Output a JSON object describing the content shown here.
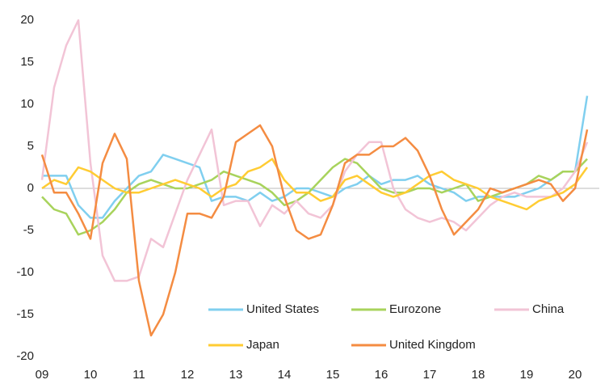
{
  "chart_data": {
    "type": "line",
    "x": [
      2009,
      2009.25,
      2009.5,
      2009.75,
      2010,
      2010.25,
      2010.5,
      2010.75,
      2011,
      2011.25,
      2011.5,
      2011.75,
      2012,
      2012.25,
      2012.5,
      2012.75,
      2013,
      2013.25,
      2013.5,
      2013.75,
      2014,
      2014.25,
      2014.5,
      2014.75,
      2015,
      2015.25,
      2015.5,
      2015.75,
      2016,
      2016.25,
      2016.5,
      2016.75,
      2017,
      2017.25,
      2017.5,
      2017.75,
      2018,
      2018.25,
      2018.5,
      2018.75,
      2019,
      2019.25,
      2019.5,
      2019.75,
      2020,
      2020.25
    ],
    "series": [
      {
        "name": "United States",
        "color": "#80cfef",
        "values": [
          1.5,
          1.5,
          1.5,
          -2,
          -3.5,
          -3.5,
          -1.5,
          0,
          1.5,
          2,
          4,
          3.5,
          3,
          2.5,
          -1.5,
          -1,
          -1,
          -1.5,
          -0.5,
          -1.5,
          -1,
          0,
          0,
          -0.5,
          -1,
          0,
          0.5,
          1.5,
          0.5,
          1,
          1,
          1.5,
          0.5,
          0,
          -0.5,
          -1.5,
          -1,
          -1,
          -1,
          -1,
          -0.5,
          0,
          1,
          2,
          2,
          11
        ]
      },
      {
        "name": "Eurozone",
        "color": "#a8d35c",
        "values": [
          -1,
          -2.5,
          -3,
          -5.5,
          -5,
          -4,
          -2.5,
          -0.5,
          0.5,
          1,
          0.5,
          0,
          0,
          0.5,
          1,
          2,
          1.5,
          1,
          0.5,
          -0.5,
          -2,
          -1.5,
          -0.5,
          1,
          2.5,
          3.5,
          3,
          1.5,
          0,
          -0.5,
          -0.5,
          0,
          0,
          -0.5,
          0,
          0.5,
          -1.5,
          -1,
          -0.5,
          0,
          0.5,
          1.5,
          1,
          2,
          2,
          3.5
        ]
      },
      {
        "name": "China",
        "color": "#f2c4d6",
        "values": [
          1,
          12,
          17,
          20,
          3,
          -8,
          -11,
          -11,
          -10.5,
          -6,
          -7,
          -3,
          1,
          4,
          7,
          -2,
          -1.5,
          -1.5,
          -4.5,
          -2,
          -3,
          -1.5,
          -3,
          -3.5,
          -2,
          2,
          4,
          5.5,
          5.5,
          0,
          -2.5,
          -3.5,
          -4,
          -3.5,
          -4,
          -5,
          -3.5,
          -2,
          -1,
          -0.5,
          -1,
          -1,
          -1,
          0,
          2,
          5.5
        ]
      },
      {
        "name": "Japan",
        "color": "#ffcc33",
        "values": [
          0,
          1,
          0.5,
          2.5,
          2,
          1,
          0,
          -0.5,
          -0.5,
          0,
          0.5,
          1,
          0.5,
          0,
          -1,
          0,
          0.5,
          2,
          2.5,
          3.5,
          1,
          -0.5,
          -0.5,
          -1.5,
          -1,
          1,
          1.5,
          0.5,
          -0.5,
          -1,
          -0.5,
          0.5,
          1.5,
          2,
          1,
          0.5,
          0,
          -1,
          -1.5,
          -2,
          -2.5,
          -1.5,
          -1,
          -0.5,
          0.5,
          2.5
        ]
      },
      {
        "name": "United Kingdom",
        "color": "#f48c42",
        "values": [
          4,
          -0.5,
          -0.5,
          -3,
          -6,
          3,
          6.5,
          3.5,
          -11,
          -17.5,
          -15,
          -10,
          -3,
          -3,
          -3.5,
          -1,
          5.5,
          6.5,
          7.5,
          5,
          -1,
          -5,
          -6,
          -5.5,
          -2,
          3,
          4,
          4,
          5,
          5,
          6,
          4.5,
          1.5,
          -2.5,
          -5.5,
          -4,
          -2.5,
          0,
          -0.5,
          0,
          0.5,
          1,
          0.5,
          -1.5,
          0,
          7
        ]
      }
    ],
    "xlim": [
      2009,
      2020.5
    ],
    "xticks": [
      {
        "value": 2009,
        "label": "09"
      },
      {
        "value": 2010,
        "label": "10"
      },
      {
        "value": 2011,
        "label": "11"
      },
      {
        "value": 2012,
        "label": "12"
      },
      {
        "value": 2013,
        "label": "13"
      },
      {
        "value": 2014,
        "label": "14"
      },
      {
        "value": 2015,
        "label": "15"
      },
      {
        "value": 2016,
        "label": "16"
      },
      {
        "value": 2017,
        "label": "17"
      },
      {
        "value": 2018,
        "label": "18"
      },
      {
        "value": 2019,
        "label": "19"
      },
      {
        "value": 2020,
        "label": "20"
      }
    ],
    "ylim": [
      -20,
      20
    ],
    "yticks": [
      -20,
      -15,
      -10,
      -5,
      0,
      5,
      10,
      15,
      20
    ],
    "legend": "lower right",
    "grid": false
  }
}
